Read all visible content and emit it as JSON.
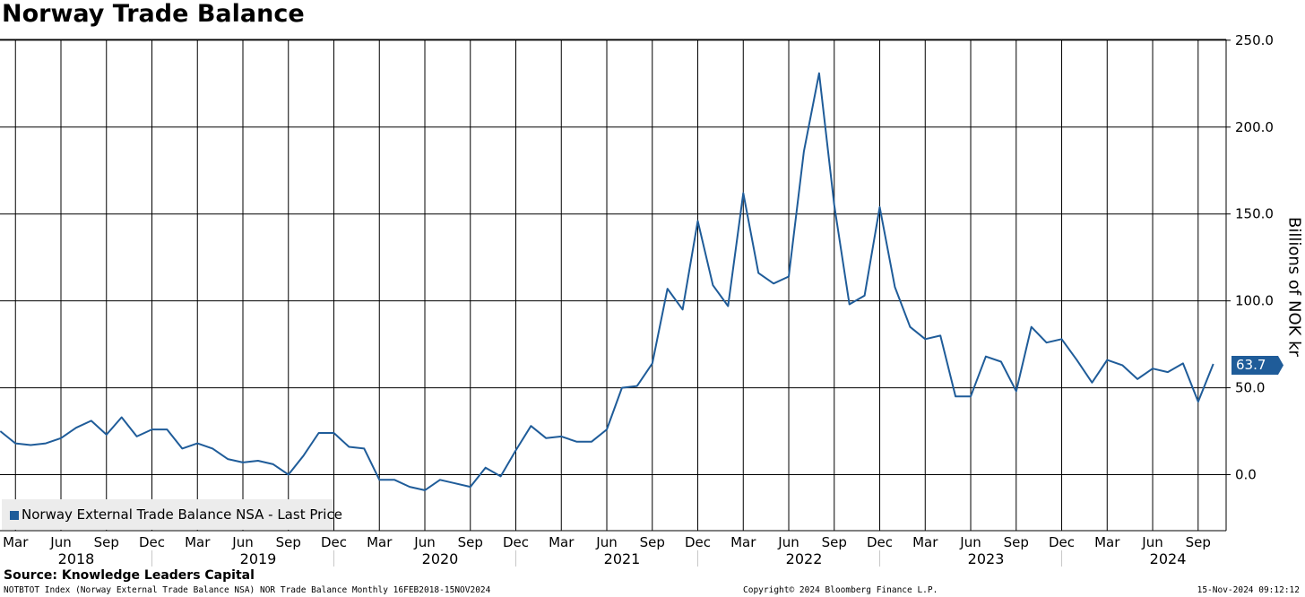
{
  "chart_data": {
    "type": "line",
    "title": "Norway Trade Balance",
    "ylabel": "Billions of NOK kr",
    "ylim": [
      -33,
      252
    ],
    "yticks": [
      "250.0",
      "200.0",
      "150.0",
      "100.0",
      "50.0",
      "0.0"
    ],
    "ytick_values": [
      250,
      200,
      150,
      100,
      50,
      0
    ],
    "grid": true,
    "legend_position": "bottom-left",
    "x_start": "2018-02",
    "x_end": "2024-11",
    "month_ticks": [
      {
        "label": "Mar",
        "date": "2018-03"
      },
      {
        "label": "Jun",
        "date": "2018-06"
      },
      {
        "label": "Sep",
        "date": "2018-09"
      },
      {
        "label": "Dec",
        "date": "2018-12"
      },
      {
        "label": "Mar",
        "date": "2019-03"
      },
      {
        "label": "Jun",
        "date": "2019-06"
      },
      {
        "label": "Sep",
        "date": "2019-09"
      },
      {
        "label": "Dec",
        "date": "2019-12"
      },
      {
        "label": "Mar",
        "date": "2020-03"
      },
      {
        "label": "Jun",
        "date": "2020-06"
      },
      {
        "label": "Sep",
        "date": "2020-09"
      },
      {
        "label": "Dec",
        "date": "2020-12"
      },
      {
        "label": "Mar",
        "date": "2021-03"
      },
      {
        "label": "Jun",
        "date": "2021-06"
      },
      {
        "label": "Sep",
        "date": "2021-09"
      },
      {
        "label": "Dec",
        "date": "2021-12"
      },
      {
        "label": "Mar",
        "date": "2022-03"
      },
      {
        "label": "Jun",
        "date": "2022-06"
      },
      {
        "label": "Sep",
        "date": "2022-09"
      },
      {
        "label": "Dec",
        "date": "2022-12"
      },
      {
        "label": "Mar",
        "date": "2023-03"
      },
      {
        "label": "Jun",
        "date": "2023-06"
      },
      {
        "label": "Sep",
        "date": "2023-09"
      },
      {
        "label": "Dec",
        "date": "2023-12"
      },
      {
        "label": "Mar",
        "date": "2024-03"
      },
      {
        "label": "Jun",
        "date": "2024-06"
      },
      {
        "label": "Sep",
        "date": "2024-09"
      }
    ],
    "year_labels": [
      "2018",
      "2019",
      "2020",
      "2021",
      "2022",
      "2023",
      "2024"
    ],
    "series": [
      {
        "name": "Norway External Trade Balance NSA - Last Price",
        "color": "#1f5c99",
        "last_value_label": "63.7",
        "x": [
          "2018-02",
          "2018-03",
          "2018-04",
          "2018-05",
          "2018-06",
          "2018-07",
          "2018-08",
          "2018-09",
          "2018-10",
          "2018-11",
          "2018-12",
          "2019-01",
          "2019-02",
          "2019-03",
          "2019-04",
          "2019-05",
          "2019-06",
          "2019-07",
          "2019-08",
          "2019-09",
          "2019-10",
          "2019-11",
          "2019-12",
          "2020-01",
          "2020-02",
          "2020-03",
          "2020-04",
          "2020-05",
          "2020-06",
          "2020-07",
          "2020-08",
          "2020-09",
          "2020-10",
          "2020-11",
          "2020-12",
          "2021-01",
          "2021-02",
          "2021-03",
          "2021-04",
          "2021-05",
          "2021-06",
          "2021-07",
          "2021-08",
          "2021-09",
          "2021-10",
          "2021-11",
          "2021-12",
          "2022-01",
          "2022-02",
          "2022-03",
          "2022-04",
          "2022-05",
          "2022-06",
          "2022-07",
          "2022-08",
          "2022-09",
          "2022-10",
          "2022-11",
          "2022-12",
          "2023-01",
          "2023-02",
          "2023-03",
          "2023-04",
          "2023-05",
          "2023-06",
          "2023-07",
          "2023-08",
          "2023-09",
          "2023-10",
          "2023-11",
          "2023-12",
          "2024-01",
          "2024-02",
          "2024-03",
          "2024-04",
          "2024-05",
          "2024-06",
          "2024-07",
          "2024-08",
          "2024-09",
          "2024-10"
        ],
        "values": [
          25,
          18,
          17,
          18,
          21,
          27,
          31,
          23,
          33,
          22,
          26,
          26,
          15,
          18,
          15,
          9,
          7,
          8,
          6,
          0,
          11,
          24,
          24,
          16,
          15,
          -3,
          -3,
          -7,
          -9,
          -3,
          -5,
          -7,
          4,
          -1,
          14,
          28,
          21,
          22,
          19,
          19,
          26,
          50,
          51,
          64,
          107,
          95,
          146,
          109,
          97,
          162,
          116,
          110,
          114,
          186,
          231,
          155,
          98,
          103,
          154,
          108,
          85,
          78,
          80,
          45,
          45,
          68,
          65,
          48,
          85,
          76,
          78,
          66,
          53,
          66,
          63,
          55,
          61,
          59,
          64,
          42,
          63.7
        ]
      }
    ]
  },
  "source": "Source: Knowledge Leaders Capital",
  "footer": {
    "left": "NOTBTOT Index (Norway External Trade Balance NSA) NOR Trade Balance  Monthly 16FEB2018-15NOV2024",
    "center": "Copyright© 2024 Bloomberg Finance L.P.",
    "right": "15-Nov-2024 09:12:12"
  },
  "colors": {
    "line": "#1f5c99",
    "grid": "#000000",
    "legend_bg": "#ececec"
  }
}
